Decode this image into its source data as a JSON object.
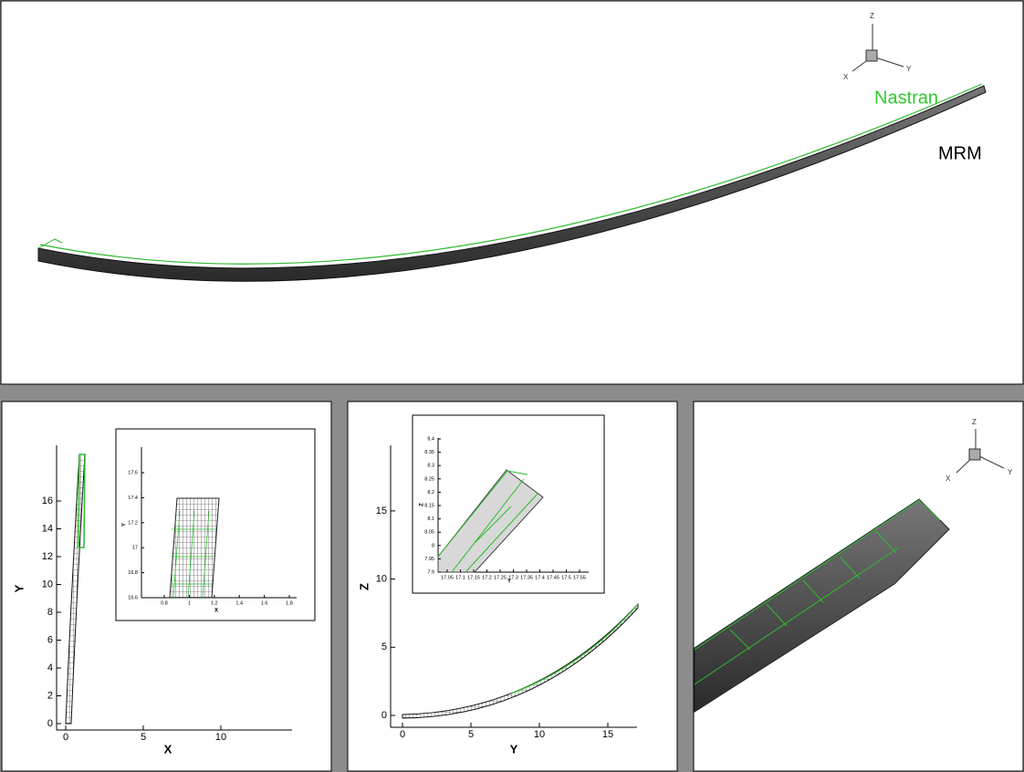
{
  "top_panel": {
    "legend": [
      "Nastran",
      "MRM"
    ],
    "triad": [
      "Z",
      "X",
      "Y"
    ]
  },
  "left_panel": {
    "x_label": "X",
    "y_label": "Y",
    "x_ticks": [
      "0",
      "5",
      "10"
    ],
    "y_ticks": [
      "0",
      "2",
      "4",
      "6",
      "8",
      "10",
      "12",
      "14",
      "16"
    ],
    "inset": {
      "x_label": "X",
      "y_label": "Y",
      "x_ticks": [
        "0.8",
        "1",
        "1.2",
        "1.4",
        "1.6",
        "1.8"
      ],
      "y_ticks": [
        "16.6",
        "16.8",
        "17",
        "17.2",
        "17.4",
        "17.6"
      ]
    }
  },
  "middle_panel": {
    "x_label": "Y",
    "y_label": "Z",
    "x_ticks": [
      "0",
      "5",
      "10",
      "15"
    ],
    "y_ticks": [
      "0",
      "5",
      "10",
      "15"
    ],
    "inset": {
      "x_label": "Y",
      "y_label": "Z",
      "x_ticks": [
        "17.05",
        "17.1",
        "17.15",
        "17.2",
        "17.25",
        "17.3",
        "17.35",
        "17.4",
        "17.45",
        "17.5",
        "17.55"
      ],
      "y_ticks": [
        "7.9",
        "7.95",
        "8",
        "8.05",
        "8.1",
        "8.15",
        "8.2",
        "8.25",
        "8.3",
        "8.35",
        "8.4"
      ]
    }
  },
  "right_panel": {
    "triad": [
      "Z",
      "X",
      "Y"
    ]
  }
}
